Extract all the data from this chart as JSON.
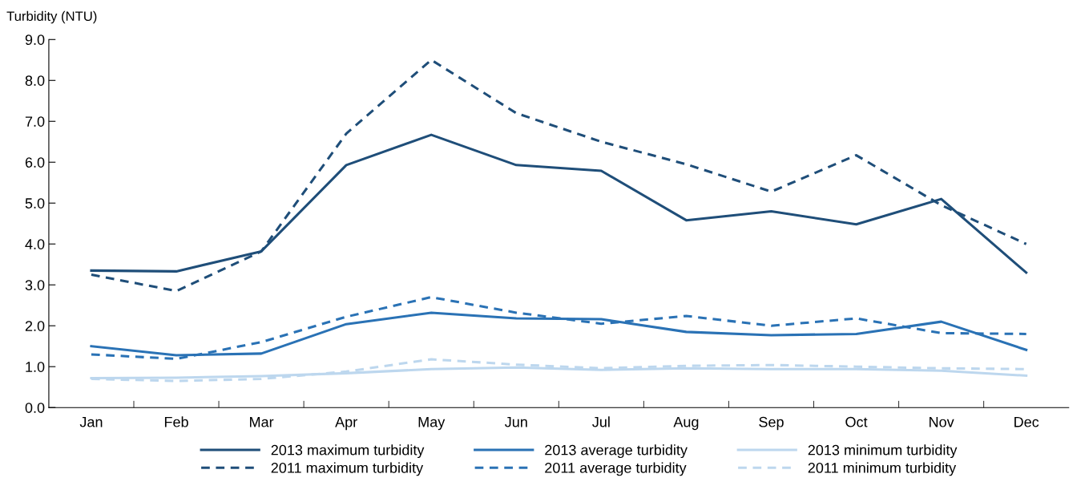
{
  "chart_data": {
    "type": "line",
    "ylabel": "Turbidity (NTU)",
    "categories": [
      "Jan",
      "Feb",
      "Mar",
      "Apr",
      "May",
      "Jun",
      "Jul",
      "Aug",
      "Sep",
      "Oct",
      "Nov",
      "Dec"
    ],
    "ylim": [
      0,
      9
    ],
    "yticks": [
      {
        "value": 0,
        "label": "0.0"
      },
      {
        "value": 1,
        "label": "1.0"
      },
      {
        "value": 2,
        "label": "2.0"
      },
      {
        "value": 3,
        "label": "3.0"
      },
      {
        "value": 4,
        "label": "4.0"
      },
      {
        "value": 5,
        "label": "5.0"
      },
      {
        "value": 6,
        "label": "6.0"
      },
      {
        "value": 7,
        "label": "7.0"
      },
      {
        "value": 8,
        "label": "8.0"
      },
      {
        "value": 9,
        "label": "9.0"
      }
    ],
    "grid": false,
    "legend": "bottom",
    "marker": "none",
    "series": [
      {
        "name": "2013 maximum turbidity",
        "color": "#1f4e79",
        "line_style": "solid",
        "values": [
          3.35,
          3.33,
          3.82,
          5.93,
          6.67,
          5.93,
          5.79,
          4.58,
          4.8,
          4.48,
          5.1,
          3.3
        ]
      },
      {
        "name": "2013 average turbidity",
        "color": "#2a72b5",
        "line_style": "solid",
        "values": [
          1.5,
          1.28,
          1.32,
          2.04,
          2.32,
          2.18,
          2.16,
          1.85,
          1.77,
          1.8,
          2.1,
          1.41
        ]
      },
      {
        "name": "2013 minimum turbidity",
        "color": "#bdd7ee",
        "line_style": "solid",
        "values": [
          0.72,
          0.73,
          0.77,
          0.84,
          0.94,
          0.98,
          0.92,
          0.96,
          0.94,
          0.94,
          0.9,
          0.78
        ]
      },
      {
        "name": "2011 maximum turbidity",
        "color": "#1f4e79",
        "line_style": "dashed",
        "values": [
          3.25,
          2.85,
          3.82,
          6.7,
          8.5,
          7.2,
          6.5,
          5.95,
          5.28,
          6.17,
          4.95,
          4.0
        ]
      },
      {
        "name": "2011 average turbidity",
        "color": "#2a72b5",
        "line_style": "dashed",
        "values": [
          1.3,
          1.19,
          1.6,
          2.22,
          2.7,
          2.32,
          2.05,
          2.24,
          2.0,
          2.18,
          1.82,
          1.8
        ]
      },
      {
        "name": "2011 minimum turbidity",
        "color": "#bdd7ee",
        "line_style": "dashed",
        "values": [
          0.7,
          0.65,
          0.7,
          0.88,
          1.18,
          1.05,
          0.96,
          1.02,
          1.04,
          1.0,
          0.96,
          0.94
        ]
      }
    ]
  }
}
